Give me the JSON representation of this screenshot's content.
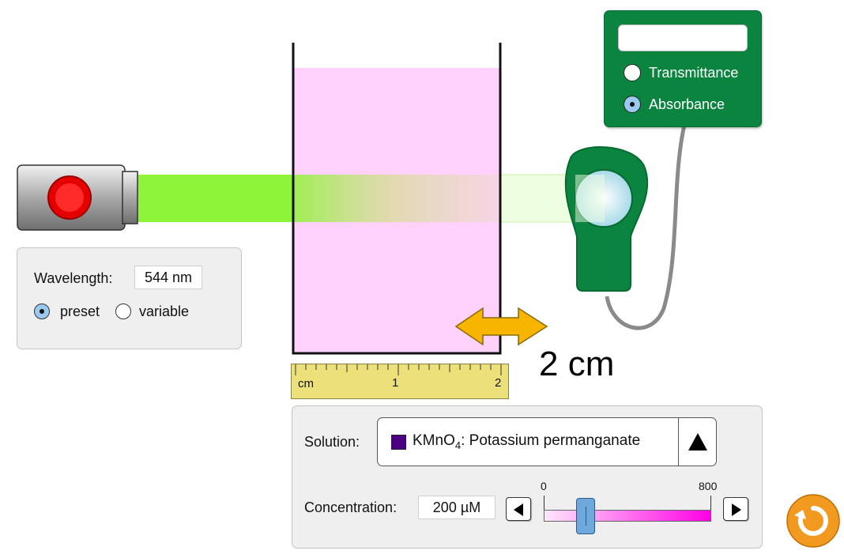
{
  "light_source": {
    "wavelength_label": "Wavelength:",
    "wavelength_value": "544 nm",
    "mode_options": [
      {
        "label": "preset",
        "selected": true
      },
      {
        "label": "variable",
        "selected": false
      }
    ],
    "beam_color": "#8ef437"
  },
  "cuvette": {
    "width_label": "2 cm",
    "solution_color": "#ffd1fb"
  },
  "ruler": {
    "unit_label": "cm",
    "tick_labels": [
      "1",
      "2"
    ]
  },
  "meter": {
    "readout": "",
    "options": [
      {
        "label": "Transmittance",
        "selected": false
      },
      {
        "label": "Absorbance",
        "selected": true
      }
    ],
    "color": "#0a843e"
  },
  "solution": {
    "label": "Solution:",
    "selected_formula_main": "KMnO",
    "selected_formula_sub": "4",
    "selected_name": ": Potassium permanganate",
    "swatch_color": "#4b0082"
  },
  "concentration": {
    "label": "Concentration:",
    "value_text": "200 µM",
    "min_label": "0",
    "max_label": "800",
    "min": 0,
    "max": 800,
    "value": 200
  },
  "controls": {
    "reset_icon": "reset-icon"
  }
}
